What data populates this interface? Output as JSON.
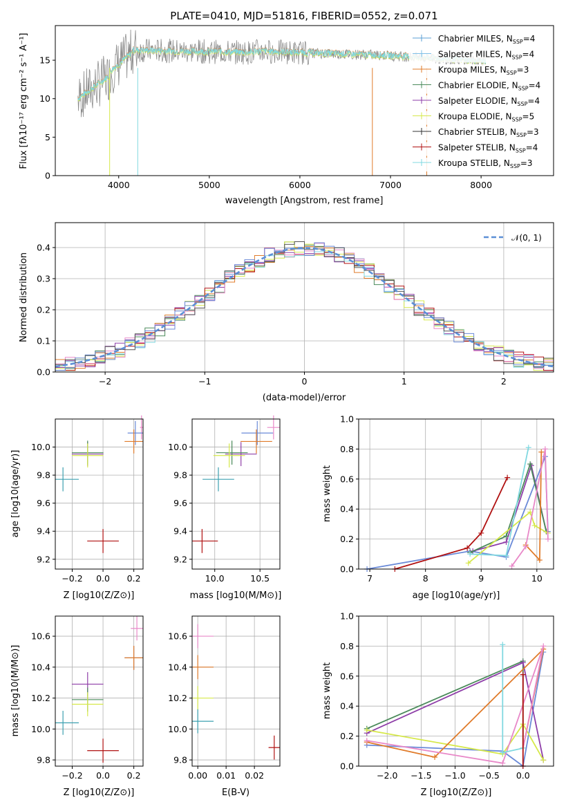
{
  "chart_data": [
    {
      "type": "line",
      "title": "PLATE=0410, MJD=51816, FIBERID=0552, z=0.071",
      "xlabel": "wavelength [Angstrom, rest frame]",
      "ylabel": "Flux [fλ10⁻¹⁷ erg cm⁻² s⁻¹ A⁻¹]",
      "xlim": [
        3300,
        8800
      ],
      "ylim": [
        0,
        19.5
      ],
      "xticks": [
        "4000",
        "5000",
        "6000",
        "7000",
        "8000"
      ],
      "yticks": [
        "0",
        "5",
        "10",
        "15"
      ],
      "legend_position": "top-right",
      "legend": [
        {
          "main": "Chabrier MILES, N",
          "sub": "SSP",
          "tail": "=4",
          "color": "#5a9fd4"
        },
        {
          "main": "Salpeter MILES, N",
          "sub": "SSP",
          "tail": "=4",
          "color": "#7dbfe8"
        },
        {
          "main": "Kroupa MILES, N",
          "sub": "SSP",
          "tail": "=3",
          "color": "#e07b2a"
        },
        {
          "main": "Chabrier ELODIE, N",
          "sub": "SSP",
          "tail": "=4",
          "color": "#4a8a5a"
        },
        {
          "main": "Salpeter ELODIE, N",
          "sub": "SSP",
          "tail": "=4",
          "color": "#8e3ea8"
        },
        {
          "main": "Kroupa ELODIE, N",
          "sub": "SSP",
          "tail": "=5",
          "color": "#d6e84a"
        },
        {
          "main": "Chabrier STELIB, N",
          "sub": "SSP",
          "tail": "=3",
          "color": "#333333"
        },
        {
          "main": "Salpeter STELIB, N",
          "sub": "SSP",
          "tail": "=4",
          "color": "#b01010"
        },
        {
          "main": "Kroupa STELIB, N",
          "sub": "SSP",
          "tail": "=3",
          "color": "#80d8e0"
        }
      ],
      "data_series": "gray",
      "model_series": "cyan"
    },
    {
      "type": "line",
      "xlabel": "(data-model)/error",
      "ylabel": "Normed distribution",
      "xlim": [
        -2.5,
        2.5
      ],
      "ylim": [
        0,
        0.48
      ],
      "xticks": [
        "−2",
        "−1",
        "0",
        "1",
        "2"
      ],
      "yticks": [
        "0.0",
        "0.1",
        "0.2",
        "0.3",
        "0.4"
      ],
      "legend": "𝒩(0, 1)",
      "legend_position": "top-right",
      "grid": true,
      "histogram_bin_width": 0.1,
      "series_colors": [
        "#e07b2a",
        "#4a8a5a",
        "#8e3ea8",
        "#d6e84a",
        "#b01010",
        "#80d8e0",
        "#e888c8",
        "#6a8ad8",
        "#555555"
      ]
    },
    {
      "type": "scatter",
      "xlabel": "Z [log10(Z/Z⊙)]",
      "ylabel": "age  [log10(age/yr)]",
      "xlim": [
        -0.31,
        0.26
      ],
      "ylim": [
        9.13,
        10.2
      ],
      "xticks": [
        "−0.2",
        "0.0",
        "0.2"
      ],
      "yticks": [
        "9.2",
        "9.4",
        "9.6",
        "9.8",
        "10.0"
      ],
      "points": [
        {
          "x": 0.25,
          "y": 10.14,
          "color": "#e888c8"
        },
        {
          "x": 0.21,
          "y": 10.1,
          "color": "#6a8ad8"
        },
        {
          "x": 0.2,
          "y": 10.04,
          "color": "#e07b2a"
        },
        {
          "x": -0.1,
          "y": 9.95,
          "color": "#8e3ea8"
        },
        {
          "x": -0.1,
          "y": 9.96,
          "color": "#4a8a5a"
        },
        {
          "x": -0.1,
          "y": 9.94,
          "color": "#d6e84a"
        },
        {
          "x": -0.26,
          "y": 9.77,
          "color": "#3ba0b0"
        },
        {
          "x": 0.0,
          "y": 9.33,
          "color": "#b01010"
        }
      ]
    },
    {
      "type": "scatter",
      "xlabel": "mass [log10(M/M⊙)]",
      "xlim": [
        9.75,
        10.72
      ],
      "ylim": [
        9.13,
        10.2
      ],
      "xticks": [
        "10.0",
        "10.5"
      ],
      "yticks": [
        "9.2",
        "9.4",
        "9.6",
        "9.8",
        "10.0"
      ],
      "points": [
        {
          "x": 10.65,
          "y": 10.14,
          "color": "#e888c8"
        },
        {
          "x": 10.47,
          "y": 10.1,
          "color": "#6a8ad8"
        },
        {
          "x": 10.46,
          "y": 10.04,
          "color": "#e07b2a"
        },
        {
          "x": 10.29,
          "y": 9.95,
          "color": "#8e3ea8"
        },
        {
          "x": 10.19,
          "y": 9.96,
          "color": "#4a8a5a"
        },
        {
          "x": 10.16,
          "y": 9.94,
          "color": "#d6e84a"
        },
        {
          "x": 10.04,
          "y": 9.77,
          "color": "#3ba0b0"
        },
        {
          "x": 9.86,
          "y": 9.33,
          "color": "#b01010"
        }
      ]
    },
    {
      "type": "line",
      "xlabel": "age  [log10(age/yr)]",
      "ylabel": "mass weight",
      "xlim": [
        6.8,
        10.3
      ],
      "ylim": [
        0,
        1
      ],
      "xticks": [
        "7",
        "8",
        "9",
        "10"
      ],
      "yticks": [
        "0.0",
        "0.2",
        "0.4",
        "0.6",
        "0.8",
        "1.0"
      ],
      "grid": true,
      "series": [
        {
          "color": "#6a8ad8",
          "x": [
            6.95,
            8.8,
            9.45,
            10.15,
            10.2
          ],
          "y": [
            0.0,
            0.12,
            0.08,
            0.75,
            0.25
          ]
        },
        {
          "color": "#b01010",
          "x": [
            7.45,
            8.75,
            9.0,
            9.47
          ],
          "y": [
            0.0,
            0.14,
            0.24,
            0.61
          ]
        },
        {
          "color": "#8e3ea8",
          "x": [
            8.85,
            9.45,
            9.9,
            10.17
          ],
          "y": [
            0.12,
            0.18,
            0.69,
            0.25
          ]
        },
        {
          "color": "#4a8a5a",
          "x": [
            8.8,
            9.45,
            9.88,
            10.17
          ],
          "y": [
            0.11,
            0.22,
            0.7,
            0.25
          ]
        },
        {
          "color": "#d6e84a",
          "x": [
            8.77,
            9.88,
            9.96,
            10.2
          ],
          "y": [
            0.04,
            0.38,
            0.29,
            0.24
          ]
        },
        {
          "color": "#e07b2a",
          "x": [
            9.8,
            10.05,
            10.08
          ],
          "y": [
            0.16,
            0.06,
            0.78
          ]
        },
        {
          "color": "#e888c8",
          "x": [
            9.55,
            9.8,
            10.15,
            10.2
          ],
          "y": [
            0.02,
            0.15,
            0.8,
            0.2
          ]
        },
        {
          "color": "#80d8e0",
          "x": [
            8.8,
            9.45,
            9.85
          ],
          "y": [
            0.1,
            0.09,
            0.81
          ]
        }
      ]
    },
    {
      "type": "scatter",
      "xlabel": "Z [log10(Z/Z⊙)]",
      "ylabel": "mass [log10(M/M⊙)]",
      "xlim": [
        -0.31,
        0.26
      ],
      "ylim": [
        9.76,
        10.73
      ],
      "xticks": [
        "−0.2",
        "0.0",
        "0.2"
      ],
      "yticks": [
        "9.8",
        "10.0",
        "10.2",
        "10.4",
        "10.6"
      ],
      "points": [
        {
          "x": 0.22,
          "y": 10.65,
          "color": "#e888c8"
        },
        {
          "x": 0.2,
          "y": 10.46,
          "color": "#6a8ad8"
        },
        {
          "x": 0.2,
          "y": 10.46,
          "color": "#e07b2a"
        },
        {
          "x": -0.1,
          "y": 10.29,
          "color": "#8e3ea8"
        },
        {
          "x": -0.1,
          "y": 10.19,
          "color": "#4a8a5a"
        },
        {
          "x": -0.1,
          "y": 10.16,
          "color": "#d6e84a"
        },
        {
          "x": -0.26,
          "y": 10.04,
          "color": "#3ba0b0"
        },
        {
          "x": 0.0,
          "y": 9.86,
          "color": "#b01010"
        }
      ]
    },
    {
      "type": "scatter",
      "xlabel": "E(B-V)",
      "xlim": [
        -0.002,
        0.029
      ],
      "ylim": [
        9.76,
        10.73
      ],
      "xticks": [
        "0.00",
        "0.01",
        "0.02"
      ],
      "yticks": [
        "9.8",
        "10.0",
        "10.2",
        "10.4",
        "10.6"
      ],
      "points": [
        {
          "x": 0.0,
          "y": 10.6,
          "color": "#e888c8"
        },
        {
          "x": 0.0,
          "y": 10.4,
          "color": "#e07b2a"
        },
        {
          "x": 0.0,
          "y": 10.2,
          "color": "#d6e84a"
        },
        {
          "x": 0.0,
          "y": 10.05,
          "color": "#3ba0b0"
        },
        {
          "x": 0.027,
          "y": 9.88,
          "color": "#b01010"
        }
      ]
    },
    {
      "type": "line",
      "xlabel": "Z [log10(Z/Z⊙)]",
      "ylabel": "mass weight",
      "xlim": [
        -2.42,
        0.45
      ],
      "ylim": [
        0,
        1
      ],
      "xticks": [
        "−2.0",
        "−1.5",
        "−1.0",
        "−0.5",
        "0.0"
      ],
      "yticks": [
        "0.0",
        "0.2",
        "0.4",
        "0.6",
        "0.8",
        "1.0"
      ],
      "grid": true,
      "series": [
        {
          "color": "#6a8ad8",
          "x": [
            -2.3,
            -0.3,
            0.0,
            0.3
          ],
          "y": [
            0.14,
            0.1,
            0.0,
            0.76
          ]
        },
        {
          "color": "#4a8a5a",
          "x": [
            -2.3,
            0.0,
            0.0
          ],
          "y": [
            0.25,
            0.7,
            0.12
          ]
        },
        {
          "color": "#8e3ea8",
          "x": [
            -2.3,
            0.0,
            0.3
          ],
          "y": [
            0.22,
            0.69,
            0.04
          ]
        },
        {
          "color": "#d6e84a",
          "x": [
            -2.3,
            -0.3,
            0.0,
            0.3
          ],
          "y": [
            0.24,
            0.08,
            0.28,
            0.04
          ]
        },
        {
          "color": "#e07b2a",
          "x": [
            -2.3,
            -1.3,
            0.3,
            0.0
          ],
          "y": [
            0.16,
            0.06,
            0.78,
            0.12
          ]
        },
        {
          "color": "#e888c8",
          "x": [
            -2.3,
            -0.3,
            0.3,
            0.0
          ],
          "y": [
            0.17,
            0.02,
            0.8,
            0.12
          ]
        },
        {
          "color": "#80d8e0",
          "x": [
            -0.3,
            -0.3,
            0.0
          ],
          "y": [
            0.81,
            0.09,
            0.12
          ]
        },
        {
          "color": "#b01010",
          "x": [
            0.0,
            0.0
          ],
          "y": [
            0.61,
            0.0
          ]
        }
      ]
    }
  ]
}
